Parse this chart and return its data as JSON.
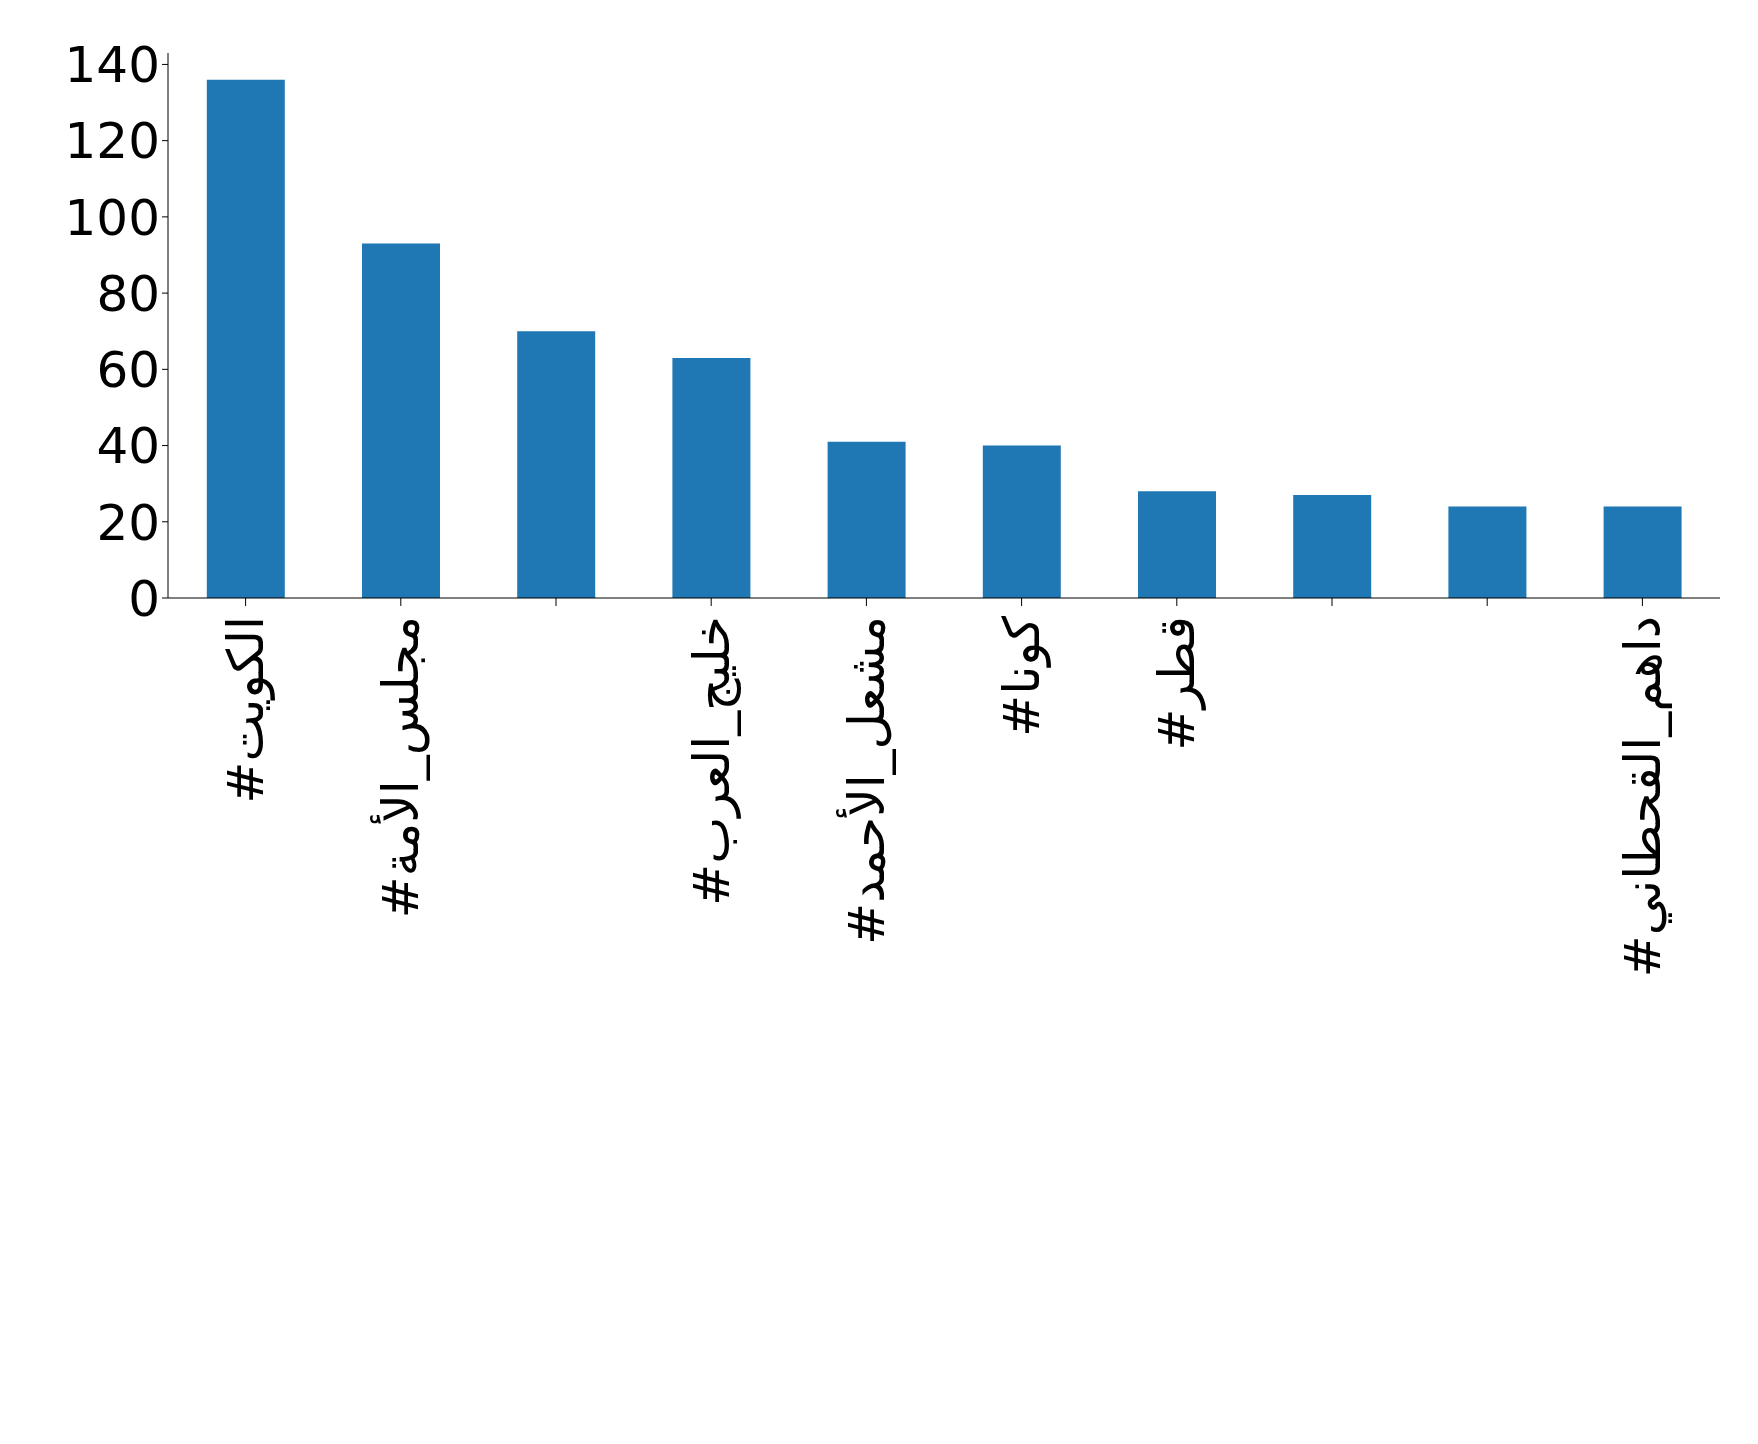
{
  "chart_data": {
    "type": "bar",
    "categories": [
      "#الكويت",
      "#مجلس_الأمة",
      null,
      "#خليج_العرب",
      "#مشعل_الأحمد",
      "#كونا",
      "#قطر",
      null,
      null,
      "#داهم_القحطاني"
    ],
    "values": [
      136,
      93,
      70,
      63,
      41,
      40,
      28,
      27,
      24,
      24
    ],
    "color": "#1f77b4",
    "ylim": [
      0,
      143
    ],
    "yticks": [
      0,
      20,
      40,
      60,
      80,
      100,
      120,
      140
    ],
    "grid": false
  }
}
